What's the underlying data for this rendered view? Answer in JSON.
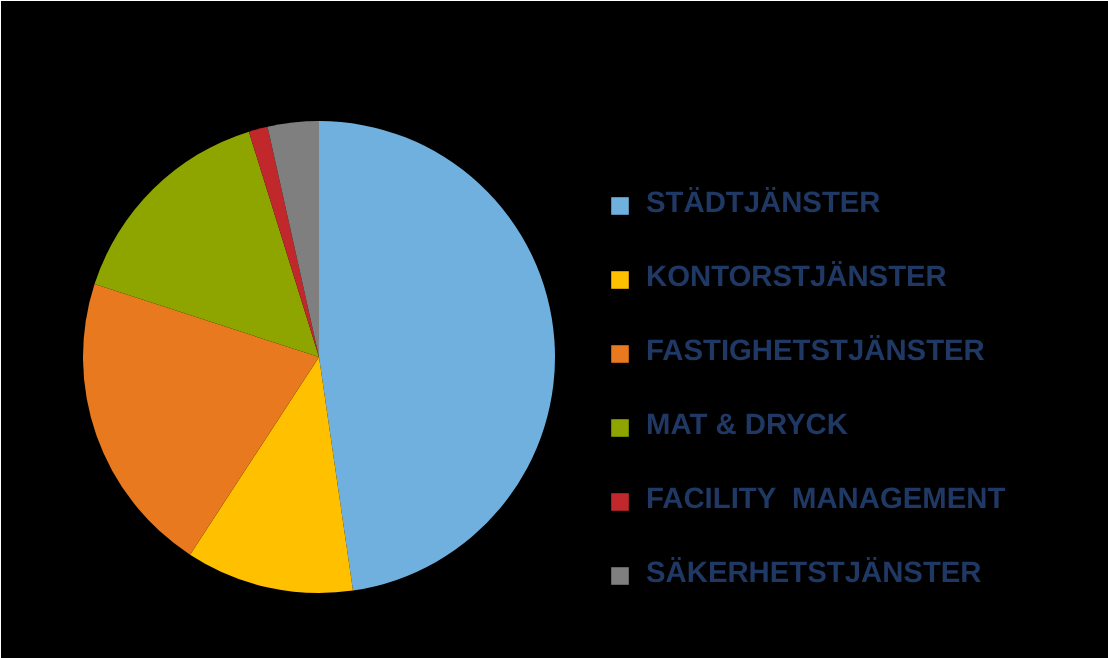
{
  "chart_data": {
    "type": "pie",
    "categories": [
      "STÄDTJÄNSTER",
      "KONTORSTJÄNSTER",
      "FASTIGHETSTJÄNSTER",
      "MAT & DRYCK",
      "FACILITY  MANAGEMENT",
      "SÄKERHETSTJÄNSTER"
    ],
    "values": [
      47.7,
      11.5,
      20.8,
      15.2,
      1.3,
      3.5
    ],
    "colors": [
      "#6fb0de",
      "#ffc000",
      "#e8791e",
      "#8ea500",
      "#c0282c",
      "#7f7f7f"
    ],
    "legend": "right"
  }
}
